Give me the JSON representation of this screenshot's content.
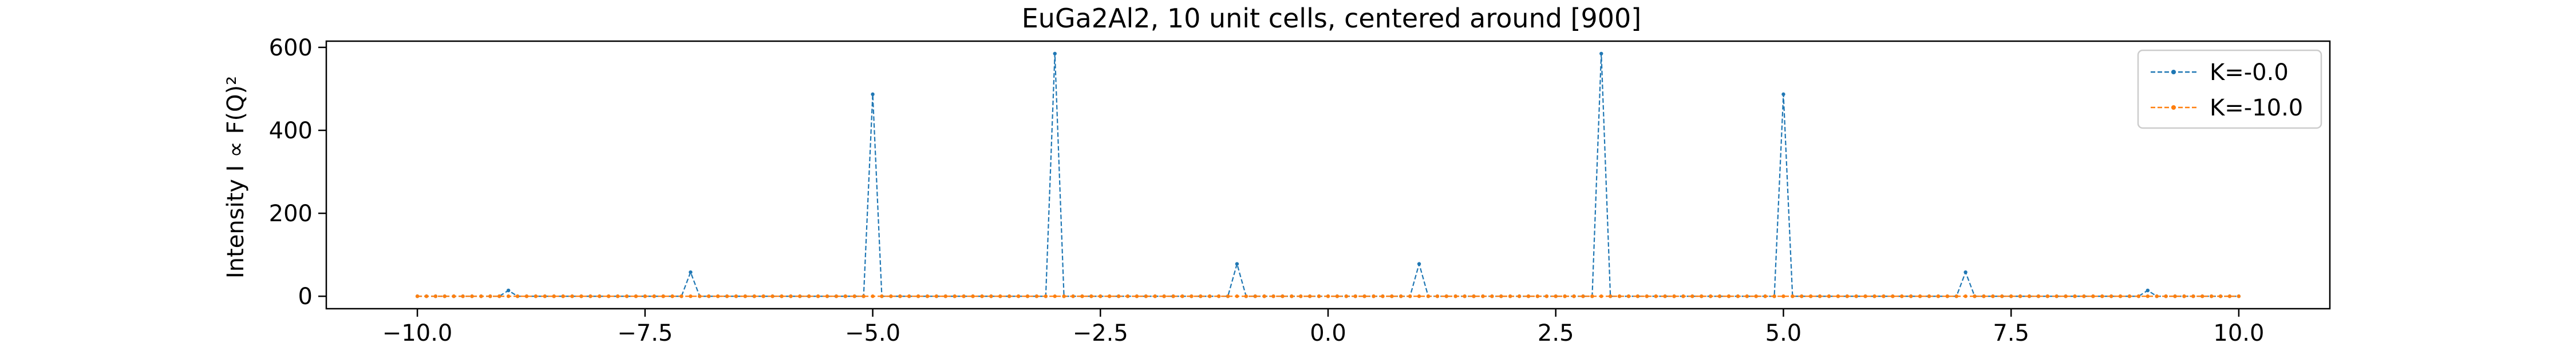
{
  "chart_data": {
    "type": "line",
    "title": "EuGa2Al2, 10 unit cells, centered around [900]",
    "xlabel": "",
    "ylabel": "Intensity I ∝ F(Q)²",
    "xlim": [
      -11.0,
      11.0
    ],
    "ylim": [
      -30,
      615
    ],
    "xticks": [
      "−10.0",
      "−7.5",
      "−5.0",
      "−2.5",
      "0.0",
      "2.5",
      "5.0",
      "7.5",
      "10.0"
    ],
    "xtick_values": [
      -10,
      -7.5,
      -5,
      -2.5,
      0,
      2.5,
      5,
      7.5,
      10
    ],
    "yticks": [
      "0",
      "200",
      "400",
      "600"
    ],
    "ytick_values": [
      0,
      200,
      400,
      600
    ],
    "grid": false,
    "legend_position": "top-right",
    "x_start": -10.0,
    "x_step": 0.1,
    "series": [
      {
        "name": "K=-0.0",
        "color": "#1f77b4",
        "linestyle": "dashed",
        "marker": "dot",
        "baseline": 0,
        "peaks": [
          {
            "x": -9,
            "y": 14
          },
          {
            "x": -7,
            "y": 58
          },
          {
            "x": -5,
            "y": 487
          },
          {
            "x": -3,
            "y": 585
          },
          {
            "x": -1,
            "y": 78
          },
          {
            "x": 1,
            "y": 78
          },
          {
            "x": 3,
            "y": 585
          },
          {
            "x": 5,
            "y": 487
          },
          {
            "x": 7,
            "y": 58
          },
          {
            "x": 9,
            "y": 14
          }
        ]
      },
      {
        "name": "K=-10.0",
        "color": "#ff7f0e",
        "linestyle": "dashed",
        "marker": "dot",
        "baseline": 0,
        "peaks": []
      }
    ]
  }
}
